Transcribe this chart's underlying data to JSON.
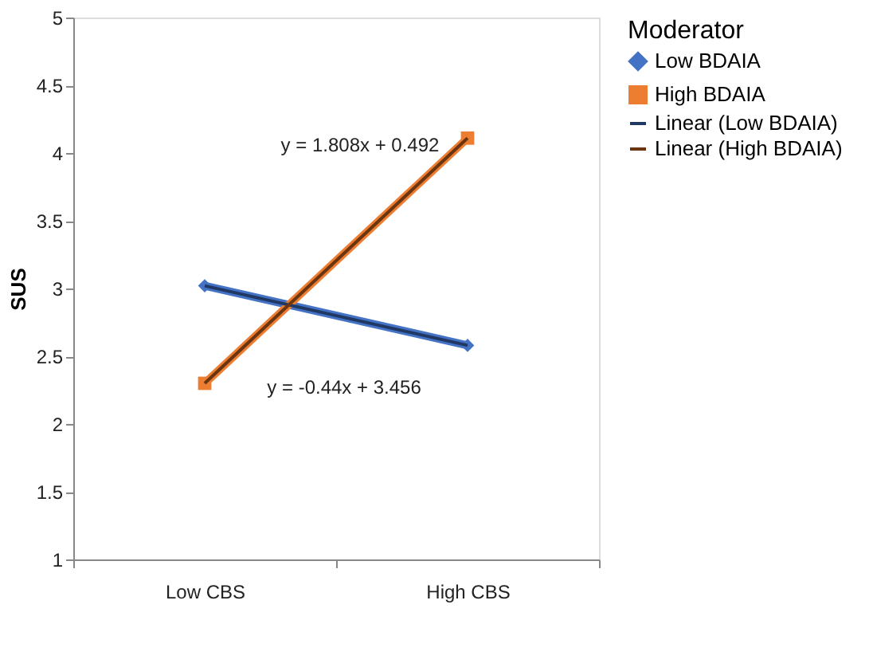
{
  "chart_data": {
    "type": "line",
    "ylabel": "SUS",
    "legend_title": "Moderator",
    "legend": "right",
    "grid": false,
    "categories": [
      "Low CBS",
      "High CBS"
    ],
    "ylim": [
      1,
      5
    ],
    "yticks": [
      1,
      1.5,
      2,
      2.5,
      3,
      3.5,
      4,
      4.5,
      5
    ],
    "series": [
      {
        "name": "Low BDAIA",
        "color": "#4472c4",
        "values": [
          3.02,
          2.58
        ],
        "marker": "diamond"
      },
      {
        "name": "High BDAIA",
        "color": "#ed7d31",
        "values": [
          2.3,
          4.11
        ],
        "marker": "square"
      },
      {
        "name": "Linear (Low BDAIA)",
        "color": "#1f3864",
        "values": [
          3.02,
          2.58
        ],
        "x": [
          "Low CBS",
          "High CBS"
        ],
        "marker": "none",
        "type": "line"
      },
      {
        "name": "Linear (High BDAIA)",
        "color": "#6b3510",
        "values": [
          2.3,
          4.11
        ],
        "x": [
          "Low CBS",
          "High CBS"
        ],
        "marker": "none",
        "type": "line"
      }
    ],
    "annotations": [
      "y = 1.808x + 0.492",
      "y = -0.44x + 3.456"
    ]
  }
}
